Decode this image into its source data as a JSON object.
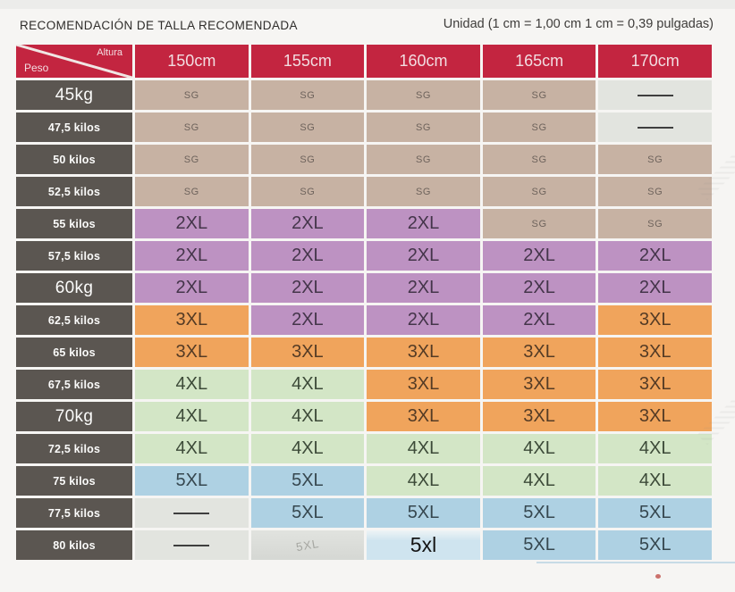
{
  "header": {
    "unit_note": "Unidad (1 cm = 1,00 cm 1 cm = 0,39 pulgadas)"
  },
  "chart_data": {
    "type": "table",
    "title": "RECOMENDACIÓN DE TALLA RECOMENDADA",
    "corner": {
      "top": "Altura",
      "bottom": "Peso"
    },
    "columns": [
      "150cm",
      "155cm",
      "160cm",
      "165cm",
      "170cm"
    ],
    "rows": [
      {
        "label": "45kg",
        "big": true,
        "values": [
          "SG",
          "SG",
          "SG",
          "SG",
          "—"
        ]
      },
      {
        "label": "47,5 kilos",
        "big": false,
        "values": [
          "SG",
          "SG",
          "SG",
          "SG",
          "—"
        ]
      },
      {
        "label": "50 kilos",
        "big": false,
        "values": [
          "SG",
          "SG",
          "SG",
          "SG",
          "SG"
        ]
      },
      {
        "label": "52,5 kilos",
        "big": false,
        "values": [
          "SG",
          "SG",
          "SG",
          "SG",
          "SG"
        ]
      },
      {
        "label": "55 kilos",
        "big": false,
        "values": [
          "2XL",
          "2XL",
          "2XL",
          "SG",
          "SG"
        ]
      },
      {
        "label": "57,5 kilos",
        "big": false,
        "values": [
          "2XL",
          "2XL",
          "2XL",
          "2XL",
          "2XL"
        ]
      },
      {
        "label": "60kg",
        "big": true,
        "values": [
          "2XL",
          "2XL",
          "2XL",
          "2XL",
          "2XL"
        ]
      },
      {
        "label": "62,5 kilos",
        "big": false,
        "values": [
          "3XL",
          "2XL",
          "2XL",
          "2XL",
          "3XL"
        ]
      },
      {
        "label": "65 kilos",
        "big": false,
        "values": [
          "3XL",
          "3XL",
          "3XL",
          "3XL",
          "3XL"
        ]
      },
      {
        "label": "67,5 kilos",
        "big": false,
        "values": [
          "4XL",
          "4XL",
          "3XL",
          "3XL",
          "3XL"
        ]
      },
      {
        "label": "70kg",
        "big": true,
        "values": [
          "4XL",
          "4XL",
          "3XL",
          "3XL",
          "3XL"
        ]
      },
      {
        "label": "72,5 kilos",
        "big": false,
        "values": [
          "4XL",
          "4XL",
          "4XL",
          "4XL",
          "4XL"
        ]
      },
      {
        "label": "75 kilos",
        "big": false,
        "values": [
          "5XL",
          "5XL",
          "4XL",
          "4XL",
          "4XL"
        ]
      },
      {
        "label": "77,5 kilos",
        "big": false,
        "values": [
          "—",
          "5XL",
          "5XL",
          "5XL",
          "5XL"
        ]
      },
      {
        "label": "80 kilos",
        "big": false,
        "values": [
          "—",
          "5XL",
          "5xl",
          "5XL",
          "5XL"
        ]
      }
    ],
    "cell_types": [
      [
        "sg",
        "sg",
        "sg",
        "sg",
        "dash"
      ],
      [
        "sg",
        "sg",
        "sg",
        "sg",
        "dash"
      ],
      [
        "sg",
        "sg",
        "sg",
        "sg",
        "sg"
      ],
      [
        "sg",
        "sg",
        "sg",
        "sg",
        "sg"
      ],
      [
        "2xl",
        "2xl",
        "2xl",
        "sg",
        "sg"
      ],
      [
        "2xl",
        "2xl",
        "2xl",
        "2xl",
        "2xl"
      ],
      [
        "2xl",
        "2xl",
        "2xl",
        "2xl",
        "2xl"
      ],
      [
        "3xl",
        "2xl",
        "2xl",
        "2xl",
        "3xl"
      ],
      [
        "3xl",
        "3xl",
        "3xl",
        "3xl",
        "3xl"
      ],
      [
        "4xl",
        "4xl",
        "3xl",
        "3xl",
        "3xl"
      ],
      [
        "4xl",
        "4xl",
        "3xl",
        "3xl",
        "3xl"
      ],
      [
        "4xl",
        "4xl",
        "4xl",
        "4xl",
        "4xl"
      ],
      [
        "5xl",
        "5xl",
        "4xl",
        "4xl",
        "4xl"
      ],
      [
        "dash",
        "5xl",
        "5xl",
        "5xl",
        "5xl"
      ],
      [
        "dash",
        "faded",
        "plain",
        "5xl",
        "5xl"
      ]
    ],
    "legend_colors": {
      "SG": "#c7b2a3",
      "2XL": "#bd92c2",
      "3XL": "#f0a45c",
      "4XL": "#d3e6c6",
      "5XL": "#aed1e3",
      "header_red": "#c32540",
      "row_label_gray": "#5b5651",
      "empty_cell": "#e2e4df"
    }
  }
}
